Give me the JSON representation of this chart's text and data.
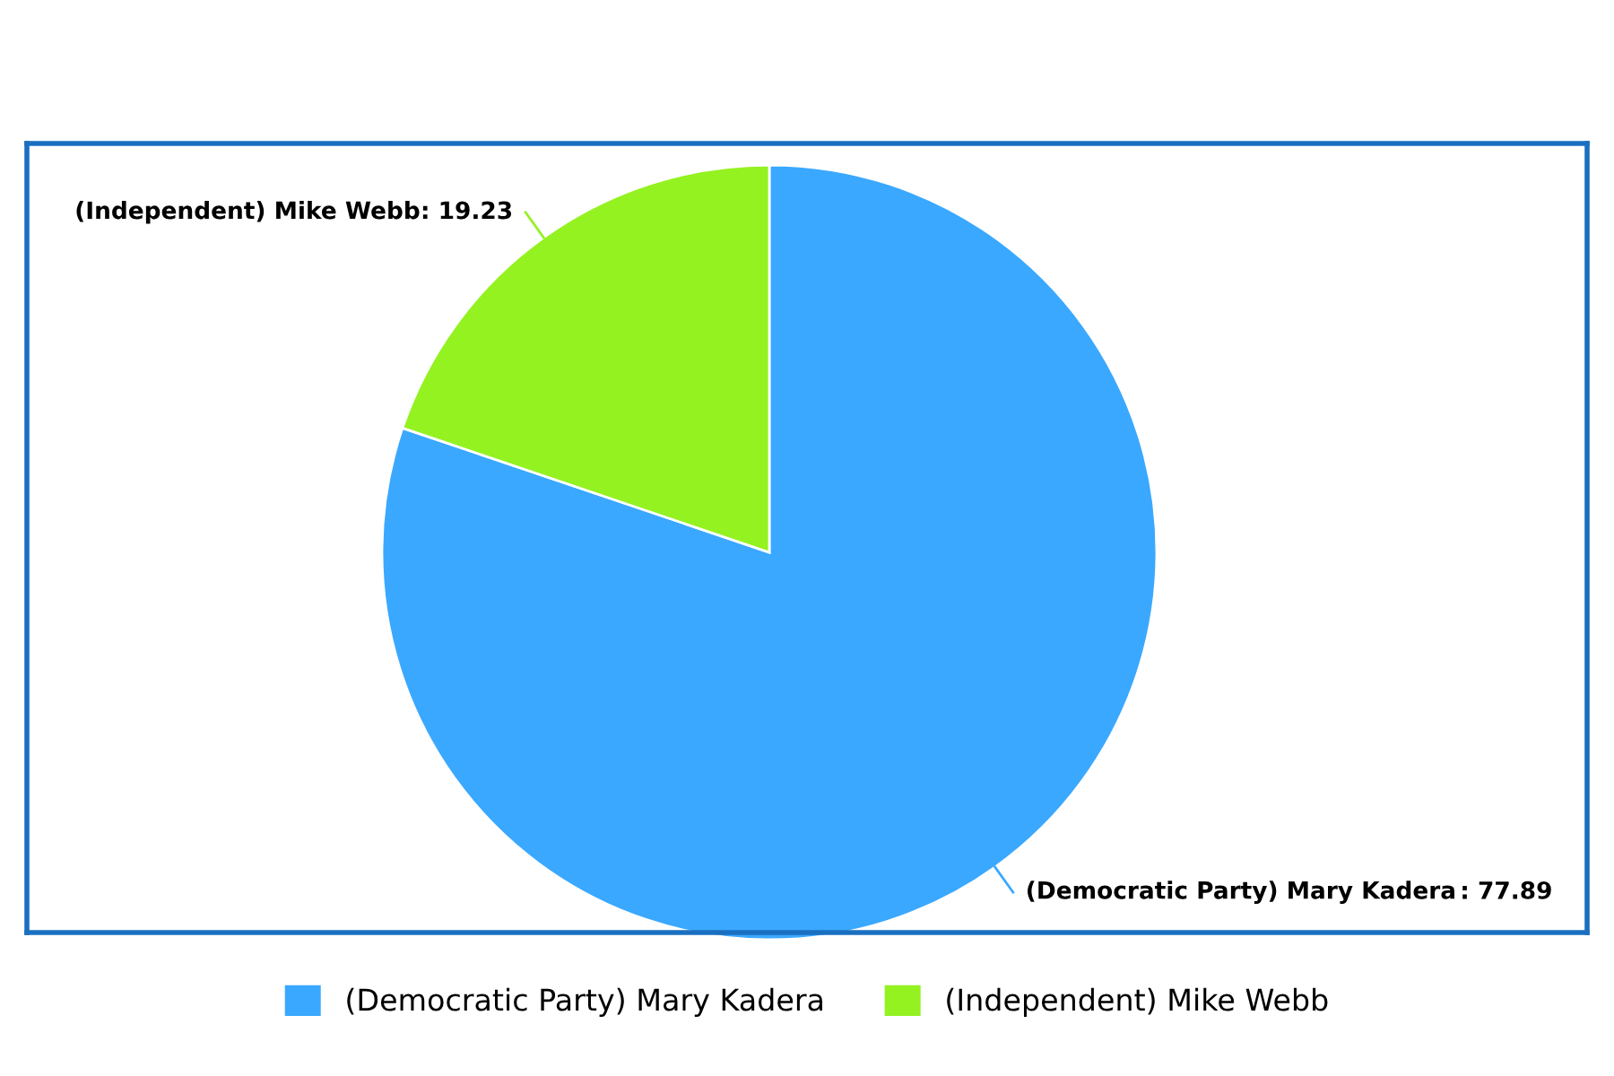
{
  "chart_data": {
    "type": "pie",
    "categories": [
      "(Democratic Party) Mary Kadera",
      "(Independent) Mike Webb"
    ],
    "values": [
      77.89,
      19.23
    ],
    "colors": [
      "#3aa8ff",
      "#94f221"
    ],
    "value_labels": [
      ": 77.89",
      ": 19.23"
    ],
    "legend": "bottom"
  }
}
